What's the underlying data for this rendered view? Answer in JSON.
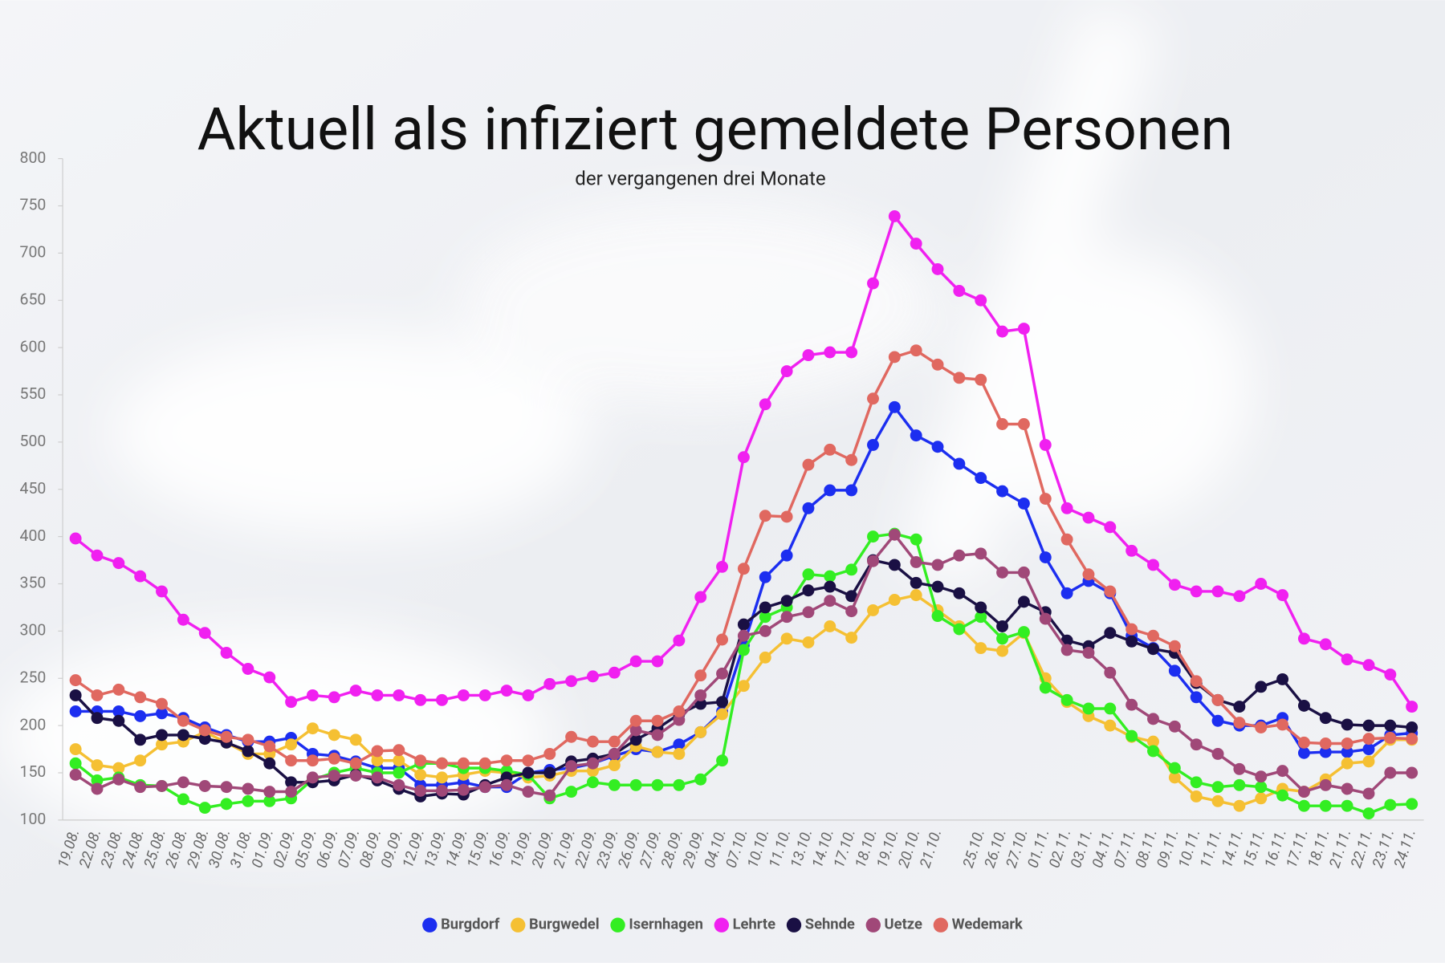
{
  "chart_data": {
    "type": "line",
    "title": "Aktuell als infiziert gemeldete Personen",
    "subtitle": "der vergangenen drei Monate",
    "categories": [
      "19.08.",
      "22.08.",
      "23.08.",
      "24.08.",
      "25.08.",
      "26.08.",
      "29.08.",
      "30.08.",
      "31.08.",
      "01.09.",
      "02.09.",
      "05.09.",
      "06.09.",
      "07.09.",
      "08.09.",
      "09.09.",
      "12.09.",
      "13.09.",
      "14.09.",
      "15.09.",
      "16.09.",
      "19.09.",
      "20.09.",
      "21.09.",
      "22.09.",
      "23.09.",
      "26.09.",
      "27.09.",
      "28.09.",
      "29.09.",
      "04.10.",
      "07.10.",
      "10.10.",
      "11.10.",
      "13.10.",
      "14.10.",
      "17.10.",
      "18.10.",
      "19.10.",
      "20.10.",
      "21.10.",
      null,
      "25.10.",
      "26.10.",
      "27.10.",
      "01.11.",
      "02.11.",
      "03.11.",
      "04.11.",
      "07.11.",
      "08.11.",
      "09.11.",
      "10.11.",
      "11.11.",
      "14.11.",
      "15.11.",
      "16.11.",
      "17.11.",
      "18.11.",
      "21.11.",
      "22.11.",
      "23.11.",
      "24.11."
    ],
    "ylim": [
      100,
      800
    ],
    "yticks": [
      100,
      150,
      200,
      250,
      300,
      350,
      400,
      450,
      500,
      550,
      600,
      650,
      700,
      750,
      800
    ],
    "grid": false,
    "series": [
      {
        "name": "Burgdorf",
        "color": "#1c2ef0",
        "values": [
          215,
          215,
          215,
          210,
          213,
          208,
          198,
          190,
          183,
          183,
          187,
          170,
          168,
          162,
          155,
          155,
          137,
          137,
          140,
          135,
          135,
          150,
          153,
          155,
          160,
          168,
          175,
          172,
          180,
          193,
          215,
          285,
          357,
          380,
          430,
          449,
          449,
          497,
          537,
          507,
          495,
          477,
          462,
          448,
          435,
          378,
          340,
          353,
          340,
          295,
          282,
          258,
          230,
          205,
          200,
          200,
          208,
          171,
          172,
          172,
          175,
          190,
          192
        ]
      },
      {
        "name": "Burgwedel",
        "color": "#f5c033",
        "values": [
          175,
          158,
          155,
          163,
          180,
          183,
          193,
          182,
          170,
          170,
          180,
          197,
          190,
          185,
          163,
          163,
          148,
          145,
          148,
          152,
          150,
          145,
          147,
          152,
          152,
          158,
          178,
          172,
          170,
          193,
          212,
          242,
          272,
          292,
          288,
          305,
          293,
          322,
          333,
          338,
          322,
          305,
          282,
          279,
          298,
          250,
          225,
          210,
          200,
          188,
          183,
          145,
          125,
          120,
          115,
          123,
          133,
          130,
          143,
          160,
          162,
          185,
          185
        ]
      },
      {
        "name": "Isernhagen",
        "color": "#33ee22",
        "values": [
          160,
          142,
          145,
          137,
          136,
          122,
          113,
          117,
          120,
          120,
          123,
          143,
          150,
          155,
          150,
          150,
          160,
          160,
          155,
          155,
          152,
          148,
          123,
          130,
          140,
          137,
          137,
          137,
          137,
          143,
          163,
          280,
          315,
          325,
          360,
          358,
          365,
          400,
          403,
          397,
          316,
          302,
          315,
          292,
          299,
          240,
          227,
          218,
          218,
          189,
          173,
          155,
          140,
          135,
          137,
          135,
          126,
          115,
          115,
          115,
          107,
          116,
          117
        ]
      },
      {
        "name": "Lehrte",
        "color": "#f020f0",
        "values": [
          398,
          380,
          372,
          358,
          342,
          312,
          298,
          277,
          260,
          251,
          225,
          232,
          230,
          237,
          232,
          232,
          227,
          227,
          232,
          232,
          237,
          232,
          244,
          247,
          252,
          256,
          268,
          268,
          290,
          336,
          368,
          484,
          540,
          575,
          592,
          595,
          595,
          668,
          739,
          710,
          683,
          660,
          650,
          617,
          620,
          497,
          430,
          420,
          410,
          385,
          370,
          349,
          342,
          342,
          337,
          350,
          338,
          292,
          286,
          270,
          264,
          254,
          220
        ]
      },
      {
        "name": "Sehnde",
        "color": "#1a1044",
        "values": [
          232,
          208,
          205,
          185,
          190,
          190,
          186,
          182,
          173,
          160,
          140,
          140,
          142,
          148,
          142,
          133,
          125,
          128,
          127,
          137,
          145,
          150,
          150,
          162,
          165,
          170,
          185,
          197,
          212,
          223,
          225,
          307,
          325,
          332,
          343,
          347,
          337,
          375,
          370,
          351,
          347,
          340,
          325,
          305,
          331,
          320,
          290,
          284,
          298,
          289,
          281,
          277,
          245,
          227,
          220,
          241,
          249,
          221,
          208,
          201,
          200,
          200,
          198
        ]
      },
      {
        "name": "Uetze",
        "color": "#a04878",
        "values": [
          148,
          133,
          143,
          135,
          136,
          140,
          136,
          135,
          133,
          130,
          130,
          145,
          147,
          147,
          145,
          137,
          131,
          131,
          132,
          135,
          137,
          130,
          126,
          157,
          160,
          170,
          195,
          190,
          206,
          232,
          255,
          295,
          300,
          315,
          320,
          332,
          321,
          374,
          402,
          373,
          370,
          380,
          382,
          362,
          362,
          313,
          280,
          277,
          256,
          222,
          207,
          199,
          180,
          170,
          154,
          146,
          152,
          130,
          137,
          133,
          128,
          150,
          150
        ]
      },
      {
        "name": "Wedemark",
        "color": "#e06860",
        "values": [
          248,
          232,
          238,
          230,
          223,
          205,
          195,
          188,
          185,
          178,
          163,
          163,
          165,
          160,
          173,
          174,
          163,
          160,
          160,
          160,
          163,
          163,
          170,
          188,
          183,
          183,
          205,
          205,
          215,
          253,
          291,
          366,
          422,
          421,
          476,
          492,
          481,
          546,
          590,
          597,
          582,
          568,
          566,
          519,
          519,
          440,
          397,
          360,
          342,
          302,
          295,
          284,
          247,
          227,
          203,
          198,
          201,
          182,
          181,
          181,
          186,
          187,
          186
        ]
      }
    ]
  }
}
